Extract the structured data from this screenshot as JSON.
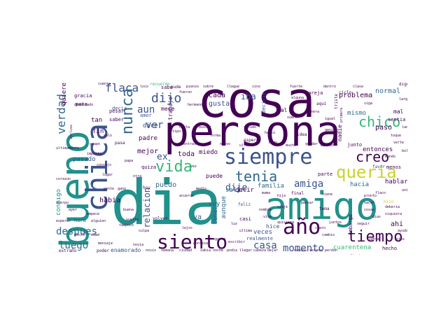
{
  "palette": {
    "dark_purple": "#440154",
    "indigo": "#3b528b",
    "teal_blue": "#31688e",
    "teal": "#21918c",
    "green": "#35b779",
    "lime": "#90d743",
    "yellow": "#c8d42c"
  },
  "words": {
    "cosa": "cosa",
    "persona": "persona",
    "dia": "dia",
    "amigo": "amigo",
    "bueno": "bueno",
    "chica": "chica",
    "siempre": "siempre",
    "siento": "siento",
    "ano": "año",
    "tiempo": "tiempo",
    "queria": "queria",
    "tenia": "tenia",
    "creo": "creo",
    "chico": "chico",
    "vida": "vida",
    "dijo": "dijo",
    "flaca": "flaca",
    "nunca": "nunca",
    "verdad": "verdad",
    "aun": "aun",
    "ver": "ver",
    "amiga": "amiga",
    "momento": "momento",
    "casa": "casa",
    "despues": "despues",
    "luego": "luego",
    "relacion": "relacion",
    "dije": "dije",
    "ex": "ex",
    "cada": "cada",
    "gusta": "gusta",
    "iba": "iba",
    "problema": "problema",
    "normal": "normal",
    "mismo": "mismo",
    "paso": "paso",
    "entonces": "entonces",
    "hablar": "hablar",
    "hacia": "hacia",
    "familia": "familia",
    "salir": "salir",
    "veces": "veces",
    "cuarentena": "cuarentena",
    "ahi": "ahi",
    "habia": "habia",
    "va": "va",
    "voy": "voy",
    "puedo": "puedo",
    "mejor": "mejor",
    "toda": "toda",
    "miedo": "miedo",
    "decir": "decir",
    "tener": "tener",
    "aunque": "aunque",
    "puede": "puede",
    "hice": "hice",
    "enamorado": "enamorado",
    "fin": "fin",
    "tan": "tan",
    "pasado": "pasado",
    "quiere": "quiere",
    "dice": "dice",
    "padre": "padre",
    "mese": "mese",
    "trabajo": "trabajo",
    "amor": "amor",
    "mal": "mal",
    "sentia": "sentia",
    "nadie": "nadie",
    "junto": "junto",
    "conmigo": "conmigo",
    "casi": "casi",
    "realmente": "realmente",
    "hecho": "hecho",
    "menos": "menos",
    "pareja": "pareja",
    "tal": "tal",
    "decirle": "decirle",
    "sabe": "sabe",
    "pude": "pude",
    "recuerdo": "recuerdo",
    "hora": "hora",
    "parte": "parte",
    "gracia": "gracia",
    "pata": "pata",
    "decia": "decia",
    "pesar": "pesar",
    "saber": "saber",
    "quiza": "quiza",
    "embargo": "embargo",
    "favor": "favor",
    "ciclo": "ciclo",
    "aqui": "aqui",
    "idea": "idea",
    "hizo": "hizo",
    "espero": "espero",
    "feliz": "feliz",
    "tema": "tema",
    "volver": "volver",
    "poder": "poder",
    "extrano": "extraño",
    "hoy": "hoy",
    "pasa": "pasa",
    "solo": "solo",
    "tipo": "tipo",
    "manera": "manera",
    "primera": "primera",
    "triste": "triste",
    "final": "final",
    "digo": "digo",
    "quisiera": "quisiera",
    "flaco": "flaco",
    "demasiado": "demasiado",
    "incluso": "incluso",
    "saludo": "saludo",
    "hermano": "hermano",
    "gente": "gente",
    "buena": "buena",
    "vez": "vez",
    "forma": "forma",
    "mientras": "mientras",
    "nuevo": "nuevo",
    "ultimo": "ultimo",
    "bien": "bien",
    "mucho": "mucho",
    "quedar": "quedar",
    "estado": "estado",
    "mama": "mama",
    "hija": "hija",
    "pensar": "pensar",
    "tiene": "tiene",
    "deberia": "deberia",
    "siquiera": "siquiera",
    "pronto": "pronto",
    "hacer": "hacer",
    "cosas": "cosas",
    "dias": "dias",
    "seguir": "seguir",
    "ayuda": "ayuda",
    "claro": "claro",
    "juntos": "juntos",
    "consejo": "consejo",
    "lugar": "lugar",
    "otra": "otra",
    "papa": "papa",
    "vuelta": "vuelta",
    "tampoco": "tampoco",
    "empece": "empece",
    "alguien": "alguien",
    "mensaje": "mensaje",
    "novia": "novia",
    "novio": "novio",
    "semana": "semana",
    "ciudad": "ciudad",
    "sabia": "sabia",
    "noche": "noche",
    "podia": "podia",
    "llegar": "llegar",
    "cabeza": "cabeza",
    "dejar": "dejar",
    "camino": "camino",
    "verano": "verano",
    "perdon": "perdon",
    "confesar": "confesar",
    "pregunta": "pregunta",
    "escribir": "escribir",
    "ultima": "ultima",
    "situacion": "situacion",
    "fiesta": "fiesta",
    "siente": "siente",
    "ojos": "ojos",
    "unico": "unico",
    "gano": "gano",
    "corazon": "corazon",
    "cuerpo": "cuerpo",
    "ayer": "ayer",
    "esperar": "esperar",
    "ultimamente": "ultimamente",
    "grupo": "grupo",
    "importa": "importa",
    "cuenta": "cuenta",
    "loco": "loco",
    "fueron": "fueron",
    "pienso": "pienso",
    "fuerte": "fuerte",
    "alguna": "alguna",
    "sueno": "sueño",
    "igual": "igual",
    "genial": "genial",
    "toque": "toque",
    "verte": "verte",
    "mundo": "mundo",
    "bola": "bola",
    "lado": "lado",
    "largo": "largo",
    "siga": "siga",
    "clase": "clase",
    "dentro": "dentro",
    "sino": "sino",
    "llegue": "llegue",
    "sobre": "sobre",
    "hablo": "hablo",
    "buscar": "buscar",
    "hasta": "hasta",
    "medio": "medio",
    "acuerdo": "acuerdo",
    "luz": "luz",
    "nombre": "nombre",
    "viaje": "viaje",
    "vive": "vive",
    "lejos": "lejos",
    "culpa": "culpa",
    "mente": "mente",
    "edad": "edad",
    "cambio": "cambio"
  }
}
